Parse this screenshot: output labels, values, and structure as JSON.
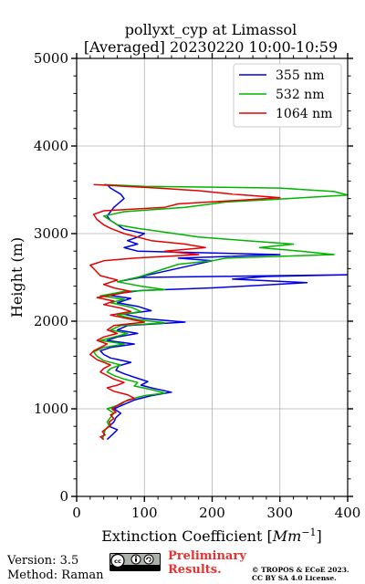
{
  "chart_data": {
    "type": "line",
    "title_line1": "pollyxt_cyp at Limassol",
    "title_line2": "[Averaged] 20230220 10:00-10:59",
    "xlabel_prefix": "Extinction Coefficient [",
    "xlabel_unit": "Mm",
    "xlabel_exp": "−1",
    "xlabel_suffix": "]",
    "ylabel": "Height (m)",
    "xlim": [
      0,
      400
    ],
    "ylim": [
      0,
      5000
    ],
    "xticks": [
      0,
      100,
      200,
      300,
      400
    ],
    "yticks": [
      0,
      1000,
      2000,
      3000,
      4000,
      5000
    ],
    "grid": true,
    "legend_position": "top-right",
    "series": [
      {
        "name": "355 nm",
        "color": "#0000e6",
        "points": [
          [
            45,
            650
          ],
          [
            52,
            700
          ],
          [
            60,
            760
          ],
          [
            48,
            800
          ],
          [
            55,
            850
          ],
          [
            58,
            900
          ],
          [
            65,
            950
          ],
          [
            55,
            1000
          ],
          [
            70,
            1050
          ],
          [
            85,
            1100
          ],
          [
            110,
            1150
          ],
          [
            140,
            1190
          ],
          [
            115,
            1230
          ],
          [
            95,
            1270
          ],
          [
            105,
            1310
          ],
          [
            85,
            1360
          ],
          [
            70,
            1400
          ],
          [
            58,
            1440
          ],
          [
            62,
            1490
          ],
          [
            80,
            1530
          ],
          [
            50,
            1580
          ],
          [
            40,
            1620
          ],
          [
            35,
            1660
          ],
          [
            50,
            1700
          ],
          [
            85,
            1740
          ],
          [
            45,
            1780
          ],
          [
            60,
            1820
          ],
          [
            90,
            1860
          ],
          [
            60,
            1900
          ],
          [
            75,
            1950
          ],
          [
            160,
            1990
          ],
          [
            100,
            2030
          ],
          [
            70,
            2080
          ],
          [
            110,
            2120
          ],
          [
            90,
            2170
          ],
          [
            60,
            2210
          ],
          [
            80,
            2260
          ],
          [
            45,
            2300
          ],
          [
            95,
            2350
          ],
          [
            200,
            2380
          ],
          [
            340,
            2440
          ],
          [
            230,
            2480
          ],
          [
            280,
            2510
          ],
          [
            400,
            2530
          ],
          [
            95,
            2500
          ],
          [
            60,
            2450
          ],
          [
            200,
            2690
          ],
          [
            150,
            2720
          ],
          [
            300,
            2760
          ],
          [
            90,
            2800
          ],
          [
            70,
            2840
          ],
          [
            90,
            2880
          ],
          [
            75,
            2920
          ],
          [
            90,
            2960
          ],
          [
            100,
            3000
          ],
          [
            70,
            3050
          ],
          [
            60,
            3100
          ],
          [
            50,
            3150
          ],
          [
            45,
            3200
          ],
          [
            55,
            3300
          ],
          [
            70,
            3400
          ],
          [
            65,
            3450
          ],
          [
            50,
            3520
          ],
          [
            45,
            3560
          ]
        ]
      },
      {
        "name": "532 nm",
        "color": "#00b400",
        "points": [
          [
            38,
            650
          ],
          [
            40,
            700
          ],
          [
            42,
            760
          ],
          [
            48,
            810
          ],
          [
            45,
            850
          ],
          [
            50,
            900
          ],
          [
            55,
            950
          ],
          [
            45,
            1000
          ],
          [
            65,
            1050
          ],
          [
            75,
            1100
          ],
          [
            100,
            1150
          ],
          [
            130,
            1180
          ],
          [
            110,
            1220
          ],
          [
            85,
            1260
          ],
          [
            90,
            1300
          ],
          [
            70,
            1340
          ],
          [
            55,
            1380
          ],
          [
            45,
            1420
          ],
          [
            50,
            1460
          ],
          [
            65,
            1500
          ],
          [
            40,
            1550
          ],
          [
            30,
            1600
          ],
          [
            25,
            1650
          ],
          [
            40,
            1700
          ],
          [
            70,
            1740
          ],
          [
            35,
            1780
          ],
          [
            55,
            1820
          ],
          [
            75,
            1860
          ],
          [
            50,
            1900
          ],
          [
            65,
            1950
          ],
          [
            130,
            1980
          ],
          [
            90,
            2020
          ],
          [
            60,
            2070
          ],
          [
            95,
            2110
          ],
          [
            80,
            2160
          ],
          [
            50,
            2210
          ],
          [
            70,
            2250
          ],
          [
            35,
            2290
          ],
          [
            70,
            2340
          ],
          [
            130,
            2360
          ],
          [
            95,
            2400
          ],
          [
            60,
            2450
          ],
          [
            90,
            2500
          ],
          [
            150,
            2650
          ],
          [
            200,
            2690
          ],
          [
            220,
            2720
          ],
          [
            380,
            2760
          ],
          [
            330,
            2800
          ],
          [
            270,
            2840
          ],
          [
            320,
            2880
          ],
          [
            250,
            2920
          ],
          [
            180,
            2960
          ],
          [
            145,
            3000
          ],
          [
            90,
            3060
          ],
          [
            60,
            3100
          ],
          [
            50,
            3150
          ],
          [
            40,
            3200
          ],
          [
            70,
            3250
          ],
          [
            160,
            3300
          ],
          [
            220,
            3360
          ],
          [
            290,
            3390
          ],
          [
            400,
            3440
          ],
          [
            380,
            3480
          ],
          [
            300,
            3520
          ],
          [
            100,
            3540
          ],
          [
            40,
            3560
          ]
        ]
      },
      {
        "name": "1064 nm",
        "color": "#e60000",
        "points": [
          [
            40,
            650
          ],
          [
            35,
            680
          ],
          [
            42,
            700
          ],
          [
            38,
            740
          ],
          [
            45,
            780
          ],
          [
            50,
            810
          ],
          [
            48,
            850
          ],
          [
            55,
            890
          ],
          [
            50,
            930
          ],
          [
            58,
            960
          ],
          [
            52,
            1000
          ],
          [
            60,
            1040
          ],
          [
            70,
            1080
          ],
          [
            85,
            1120
          ],
          [
            75,
            1160
          ],
          [
            55,
            1200
          ],
          [
            45,
            1240
          ],
          [
            60,
            1270
          ],
          [
            70,
            1300
          ],
          [
            55,
            1340
          ],
          [
            45,
            1380
          ],
          [
            35,
            1420
          ],
          [
            40,
            1460
          ],
          [
            50,
            1500
          ],
          [
            30,
            1560
          ],
          [
            20,
            1620
          ],
          [
            25,
            1660
          ],
          [
            35,
            1700
          ],
          [
            45,
            1740
          ],
          [
            30,
            1780
          ],
          [
            40,
            1820
          ],
          [
            60,
            1860
          ],
          [
            45,
            1900
          ],
          [
            55,
            1950
          ],
          [
            100,
            1990
          ],
          [
            75,
            2030
          ],
          [
            50,
            2070
          ],
          [
            80,
            2110
          ],
          [
            65,
            2150
          ],
          [
            40,
            2190
          ],
          [
            55,
            2230
          ],
          [
            30,
            2270
          ],
          [
            60,
            2310
          ],
          [
            80,
            2340
          ],
          [
            55,
            2380
          ],
          [
            40,
            2420
          ],
          [
            60,
            2470
          ],
          [
            35,
            2520
          ],
          [
            25,
            2600
          ],
          [
            20,
            2640
          ],
          [
            40,
            2690
          ],
          [
            85,
            2720
          ],
          [
            180,
            2760
          ],
          [
            130,
            2800
          ],
          [
            190,
            2840
          ],
          [
            160,
            2880
          ],
          [
            110,
            2920
          ],
          [
            90,
            2960
          ],
          [
            70,
            3000
          ],
          [
            50,
            3060
          ],
          [
            40,
            3100
          ],
          [
            30,
            3160
          ],
          [
            25,
            3220
          ],
          [
            40,
            3260
          ],
          [
            130,
            3300
          ],
          [
            150,
            3340
          ],
          [
            240,
            3380
          ],
          [
            300,
            3410
          ],
          [
            230,
            3450
          ],
          [
            180,
            3490
          ],
          [
            120,
            3520
          ],
          [
            60,
            3545
          ],
          [
            25,
            3560
          ]
        ]
      }
    ]
  },
  "footer": {
    "version": "Version: 3.5",
    "method": "Method: Raman",
    "prelim_line1": "Preliminary",
    "prelim_line2": "Results.",
    "copyright_line1": "© TROPOS & ECoE 2023.",
    "copyright_line2": "CC BY SA 4.0 License.",
    "cc_logo": "cc-by-sa-badge"
  }
}
